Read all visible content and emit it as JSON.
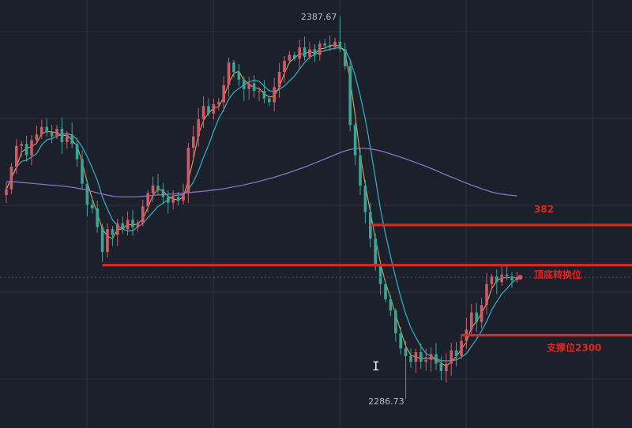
{
  "chart_data": {
    "type": "candlestick",
    "title": "",
    "xlabel": "",
    "ylabel": "",
    "ylim": [
      2279,
      2392
    ],
    "grid": true,
    "colors": {
      "background": "#1b202b",
      "grid": "#2b3140",
      "up": "#cf5a68",
      "down": "#3aa597",
      "ma_fast": "#d8a25a",
      "ma_mid": "#35a6b8",
      "ma_slow": "#8a72c8",
      "annotation": "#e0261f"
    },
    "price_labels": {
      "high": "2387.67",
      "low": "2286.73"
    },
    "high_value": 2387.67,
    "low_value": 2286.73,
    "current_price": 2318.8,
    "annotations": [
      {
        "label": "382",
        "value": 2332.6,
        "start_bar": 72
      },
      {
        "label": "顶底转换位",
        "value": 2322.0,
        "start_bar": 19
      },
      {
        "label": "支撑位2300",
        "value": 2303.5,
        "start_bar": 90
      }
    ],
    "cursor_glyph": "I",
    "closes": [
      2342.0,
      2348.0,
      2353.5,
      2354.0,
      2351.0,
      2355.0,
      2356.5,
      2358.5,
      2357.0,
      2356.0,
      2358.0,
      2354.5,
      2356.5,
      2354.0,
      2350.0,
      2343.5,
      2338.0,
      2337.0,
      2332.0,
      2325.5,
      2331.5,
      2330.0,
      2333.0,
      2331.5,
      2334.0,
      2332.0,
      2333.0,
      2337.5,
      2341.0,
      2343.0,
      2342.0,
      2340.0,
      2338.5,
      2340.0,
      2339.0,
      2341.0,
      2353.0,
      2356.0,
      2360.5,
      2364.0,
      2362.0,
      2364.5,
      2365.0,
      2369.5,
      2375.5,
      2373.0,
      2371.0,
      2368.5,
      2370.0,
      2368.0,
      2368.0,
      2366.0,
      2365.0,
      2369.0,
      2373.0,
      2376.0,
      2377.5,
      2376.5,
      2379.5,
      2377.0,
      2379.0,
      2377.5,
      2380.5,
      2380.0,
      2379.5,
      2381.0,
      2379.0,
      2374.5,
      2359.0,
      2351.0,
      2343.0,
      2336.0,
      2329.0,
      2322.0,
      2317.0,
      2313.0,
      2310.0,
      2304.0,
      2300.0,
      2298.0,
      2296.5,
      2299.0,
      2296.5,
      2297.0,
      2298.5,
      2296.0,
      2294.0,
      2296.0,
      2299.5,
      2298.0,
      2302.0,
      2305.0,
      2309.5,
      2307.0,
      2311.5,
      2317.0,
      2319.0,
      2317.5,
      2319.5,
      2319.0,
      2318.0,
      2318.8
    ],
    "moving_averages": {
      "slow": [
        2344.0,
        2344.0,
        2343.8,
        2343.6,
        2343.4,
        2343.2,
        2343.0,
        2342.8,
        2342.5,
        2342.1,
        2341.6,
        2341.0,
        2340.5,
        2340.1,
        2340.0,
        2340.0,
        2340.1,
        2340.3,
        2340.5,
        2340.6,
        2340.8,
        2341.0,
        2341.2,
        2341.4,
        2341.6,
        2341.9,
        2342.2,
        2342.6,
        2343.0,
        2343.5,
        2344.0,
        2344.6,
        2345.2,
        2345.9,
        2346.6,
        2347.4,
        2348.2,
        2349.1,
        2350.0,
        2350.9,
        2351.8,
        2352.5,
        2352.9,
        2352.8,
        2352.5,
        2352.0,
        2351.3,
        2350.6,
        2349.8,
        2349.0,
        2348.2,
        2347.3,
        2346.3,
        2345.4,
        2344.5,
        2343.6,
        2342.8,
        2342.0,
        2341.3,
        2340.8,
        2340.5,
        2340.3
      ]
    }
  }
}
